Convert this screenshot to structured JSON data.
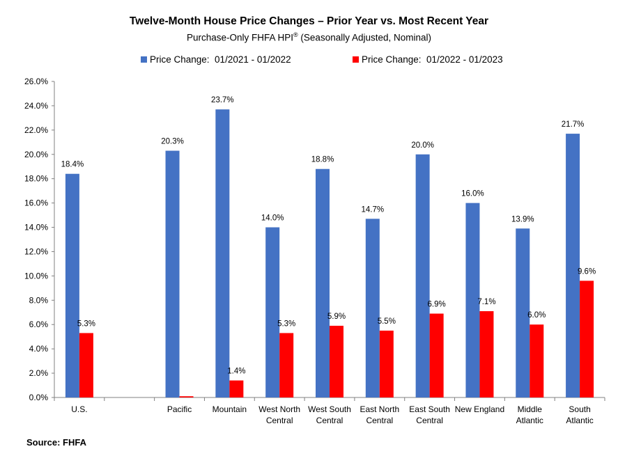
{
  "chart_data": {
    "type": "bar",
    "title": "Twelve-Month House Price Changes – Prior Year vs. Most Recent Year",
    "subtitle": "Purchase-Only FHFA HPI",
    "subtitle_mark": "®",
    "subtitle_rest": " (Seasonally Adjusted, Nominal)",
    "categories": [
      [
        "U.S."
      ],
      [
        ""
      ],
      [
        "Pacific"
      ],
      [
        "Mountain"
      ],
      [
        "West North",
        "Central"
      ],
      [
        "West South",
        "Central"
      ],
      [
        "East North",
        "Central"
      ],
      [
        "East South",
        "Central"
      ],
      [
        "New England"
      ],
      [
        "Middle",
        "Atlantic"
      ],
      [
        "South",
        "Atlantic"
      ]
    ],
    "series": [
      {
        "name": "Price Change:  01/2021 - 01/2022",
        "color": "#4472C4",
        "values": [
          18.4,
          null,
          20.3,
          23.7,
          14.0,
          18.8,
          14.7,
          20.0,
          16.0,
          13.9,
          21.7
        ],
        "labels": [
          "18.4%",
          "",
          "20.3%",
          "23.7%",
          "14.0%",
          "18.8%",
          "14.7%",
          "20.0%",
          "16.0%",
          "13.9%",
          "21.7%"
        ]
      },
      {
        "name": "Price Change:  01/2022 - 01/2023",
        "color": "#FF0000",
        "values": [
          5.3,
          null,
          0.1,
          1.4,
          5.3,
          5.9,
          5.5,
          6.9,
          7.1,
          6.0,
          9.6
        ],
        "labels": [
          "5.3%",
          "",
          "",
          "1.4%",
          "5.3%",
          "5.9%",
          "5.5%",
          "6.9%",
          "7.1%",
          "6.0%",
          "9.6%"
        ]
      }
    ],
    "ylim": [
      0,
      26
    ],
    "yticks": [
      "0.0%",
      "2.0%",
      "4.0%",
      "6.0%",
      "8.0%",
      "10.0%",
      "12.0%",
      "14.0%",
      "16.0%",
      "18.0%",
      "20.0%",
      "22.0%",
      "24.0%",
      "26.0%"
    ],
    "grid": false,
    "legend_position": "top-center"
  },
  "source": "Source: FHFA"
}
